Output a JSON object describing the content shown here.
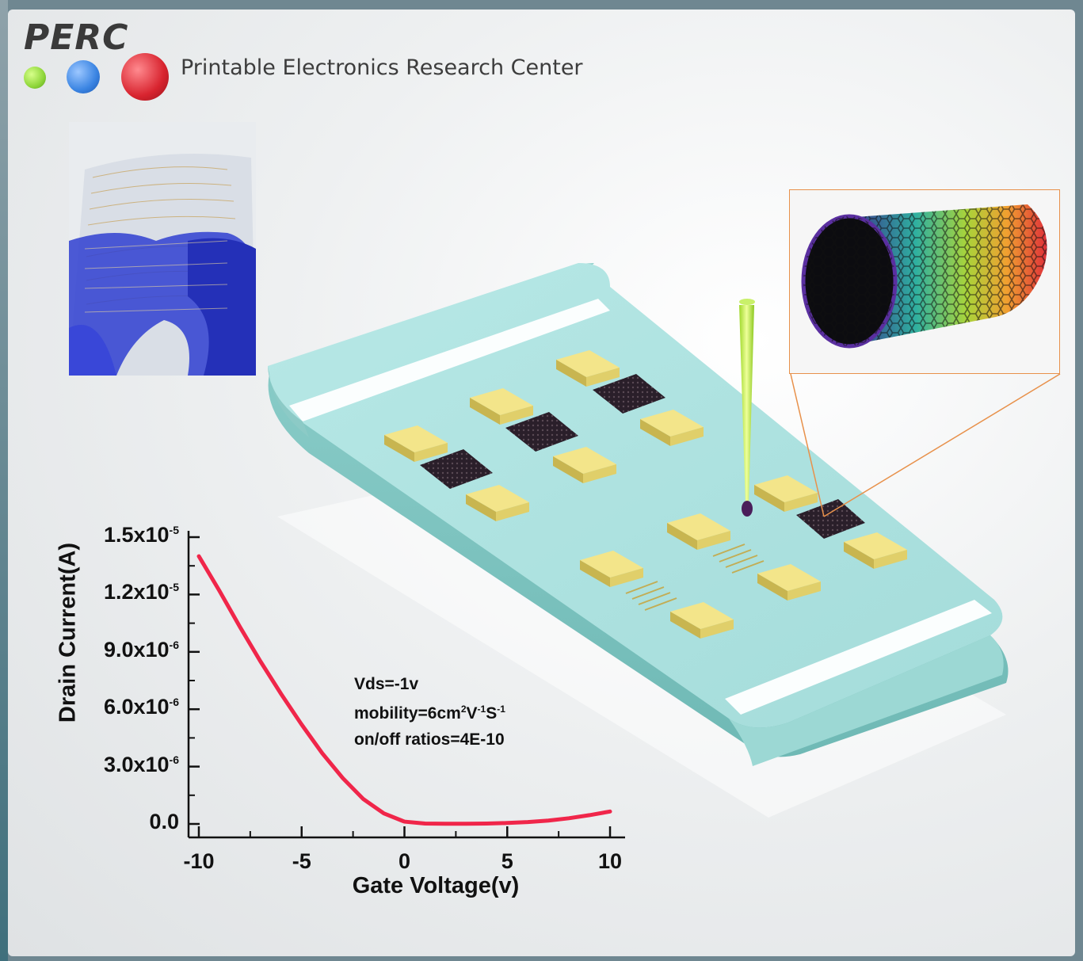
{
  "header": {
    "logo": "PERC",
    "center_name": "Printable Electronics Research Center",
    "dot_colors": [
      "#9be04a",
      "#3a84e2",
      "#d8242f"
    ]
  },
  "chart_data": {
    "type": "line",
    "xlabel": "Gate Voltage(v)",
    "ylabel": "Drain Current(A)",
    "xlim": [
      -10.5,
      10.5
    ],
    "ylim": [
      0,
      1.5e-05
    ],
    "x_ticks": [
      -10,
      -5,
      0,
      5,
      10
    ],
    "x_tick_labels": [
      "-10",
      "-5",
      "0",
      "5",
      "10"
    ],
    "y_ticks": [
      0,
      3e-06,
      6e-06,
      9e-06,
      1.2e-05,
      1.5e-05
    ],
    "y_tick_labels": [
      {
        "base": "0.0",
        "exp": ""
      },
      {
        "base": "3.0x10",
        "exp": "-6"
      },
      {
        "base": "6.0x10",
        "exp": "-6"
      },
      {
        "base": "9.0x10",
        "exp": "-6"
      },
      {
        "base": "1.2x10",
        "exp": "-5"
      },
      {
        "base": "1.5x10",
        "exp": "-5"
      }
    ],
    "series": [
      {
        "color": "#f0264a",
        "x": [
          -10,
          -9,
          -8,
          -7,
          -6,
          -5,
          -4,
          -3,
          -2,
          -1,
          0,
          1,
          2,
          3,
          4,
          5,
          6,
          7,
          8,
          9,
          10
        ],
        "y": [
          1.4e-05,
          1.22e-05,
          1.03e-05,
          8.5e-06,
          6.8e-06,
          5.2e-06,
          3.7e-06,
          2.4e-06,
          1.3e-06,
          5.5e-07,
          1.2e-07,
          2e-08,
          1e-08,
          1e-08,
          2e-08,
          5e-08,
          1e-07,
          1.8e-07,
          3e-07,
          4.6e-07,
          6.5e-07
        ]
      }
    ],
    "annotations": {
      "vds": "Vds=-1v",
      "mobility_prefix": "mobility=6cm",
      "mobility_exp1": "2",
      "mobility_unit2": "V",
      "mobility_exp2": "-1",
      "mobility_unit3": "S",
      "mobility_exp3": "-1",
      "onoff": "on/off ratios=4E-10"
    }
  }
}
